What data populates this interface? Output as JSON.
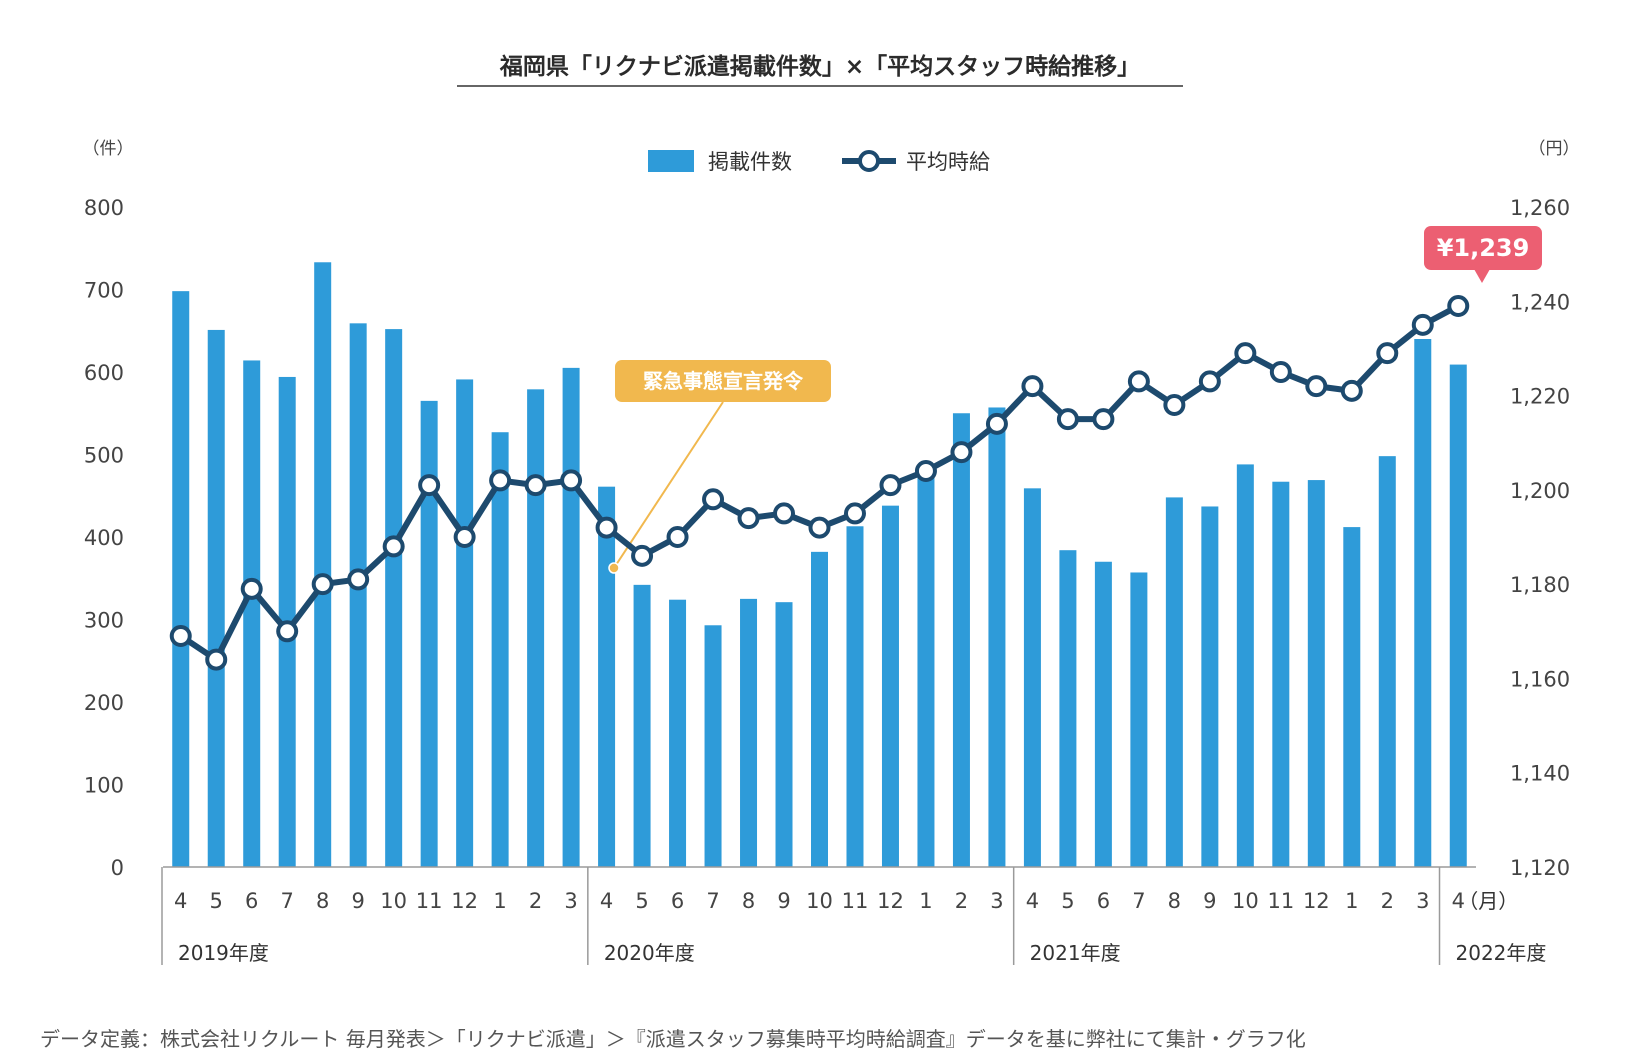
{
  "chart_data": {
    "type": "bar+line",
    "title": "福岡県「リクナビ派遣掲載件数」×「平均スタッフ時給推移」",
    "left_axis_unit": "（件）",
    "right_axis_unit": "（円）",
    "x_unit": "（月）",
    "ylim_left": [
      0,
      800
    ],
    "ylim_right": [
      1120,
      1260
    ],
    "yticks_left": [
      "0",
      "100",
      "200",
      "300",
      "400",
      "500",
      "600",
      "700",
      "800"
    ],
    "yticks_right": [
      "1,120",
      "1,140",
      "1,160",
      "1,180",
      "1,200",
      "1,220",
      "1,240",
      "1,260"
    ],
    "categories": [
      "4",
      "5",
      "6",
      "7",
      "8",
      "9",
      "10",
      "11",
      "12",
      "1",
      "2",
      "3",
      "4",
      "5",
      "6",
      "7",
      "8",
      "9",
      "10",
      "11",
      "12",
      "1",
      "2",
      "3",
      "4",
      "5",
      "6",
      "7",
      "8",
      "9",
      "10",
      "11",
      "12",
      "1",
      "2",
      "3",
      "4"
    ],
    "fiscal_years": [
      {
        "label": "2019年度",
        "start": 0
      },
      {
        "label": "2020年度",
        "start": 12
      },
      {
        "label": "2021年度",
        "start": 24
      },
      {
        "label": "2022年度",
        "start": 36
      }
    ],
    "series": [
      {
        "name": "掲載件数",
        "type": "bar",
        "axis": "left",
        "color": "#2e9bd9",
        "values": [
          698,
          651,
          614,
          594,
          733,
          659,
          652,
          565,
          591,
          527,
          579,
          605,
          461,
          342,
          324,
          293,
          325,
          321,
          382,
          413,
          438,
          475,
          550,
          557,
          459,
          384,
          370,
          357,
          448,
          437,
          488,
          467,
          469,
          412,
          498,
          640,
          609
        ]
      },
      {
        "name": "平均時給",
        "type": "line",
        "axis": "right",
        "color": "#1d4a6e",
        "values": [
          1169,
          1164,
          1179,
          1170,
          1180,
          1181,
          1188,
          1201,
          1190,
          1202,
          1201,
          1202,
          1192,
          1186,
          1190,
          1198,
          1194,
          1195,
          1192,
          1195,
          1201,
          1204,
          1208,
          1214,
          1222,
          1215,
          1215,
          1223,
          1218,
          1223,
          1229,
          1225,
          1222,
          1221,
          1229,
          1235,
          1239
        ]
      }
    ],
    "annotations": [
      {
        "text": "緊急事態宣言発令",
        "color": "#f1b84e"
      },
      {
        "text": "¥1,239",
        "color": "#ec5f72"
      }
    ]
  },
  "footnote": "データ定義：株式会社リクルート 毎月発表＞「リクナビ派遣」＞『派遣スタッフ募集時平均時給調査』データを基に弊社にて集計・グラフ化"
}
